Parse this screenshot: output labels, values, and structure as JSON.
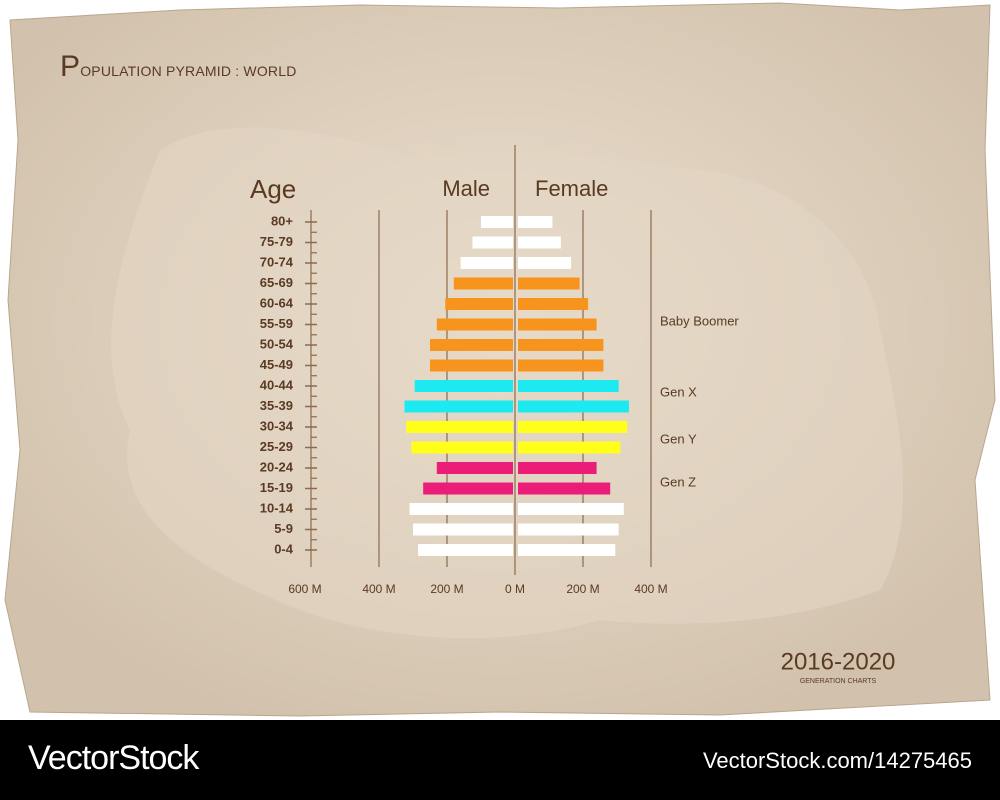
{
  "chart_data": {
    "type": "pyramid",
    "title": "POPULATION PYRAMID : WORLD",
    "axis_title": "Age",
    "categories": [
      "80+",
      "75-79",
      "70-74",
      "65-69",
      "60-64",
      "55-59",
      "50-54",
      "45-49",
      "40-44",
      "35-39",
      "30-34",
      "25-29",
      "20-24",
      "15-19",
      "10-14",
      "5-9",
      "0-4"
    ],
    "colors": [
      "#ffffff",
      "#ffffff",
      "#ffffff",
      "#f7941d",
      "#f7941d",
      "#f7941d",
      "#f7941d",
      "#f7941d",
      "#1de9f0",
      "#1de9f0",
      "#ffff1a",
      "#ffff1a",
      "#ec1c79",
      "#ec1c79",
      "#ffffff",
      "#ffffff",
      "#ffffff"
    ],
    "series": [
      {
        "name": "Male",
        "values": [
          100,
          125,
          160,
          180,
          205,
          230,
          250,
          250,
          295,
          325,
          320,
          305,
          230,
          270,
          310,
          300,
          285
        ]
      },
      {
        "name": "Female",
        "values": [
          110,
          135,
          165,
          190,
          215,
          240,
          260,
          260,
          305,
          335,
          330,
          310,
          240,
          280,
          320,
          305,
          295
        ]
      }
    ],
    "xlim": [
      0,
      600
    ],
    "male_ticks": [
      {
        "value": 600,
        "label": "600 M"
      },
      {
        "value": 400,
        "label": "400 M"
      },
      {
        "value": 200,
        "label": "200 M"
      },
      {
        "value": 0,
        "label": "0 M"
      }
    ],
    "female_ticks": [
      {
        "value": 200,
        "label": "200 M"
      },
      {
        "value": 400,
        "label": "400 M"
      }
    ],
    "annotations": [
      "Baby Boomer",
      "Gen X",
      "Gen Y",
      "Gen Z"
    ],
    "period": "2016-2020",
    "period_caption": "GENERATION CHARTS"
  },
  "watermark": {
    "brand": "VectorStock",
    "url": "VectorStock.com/14275465"
  }
}
